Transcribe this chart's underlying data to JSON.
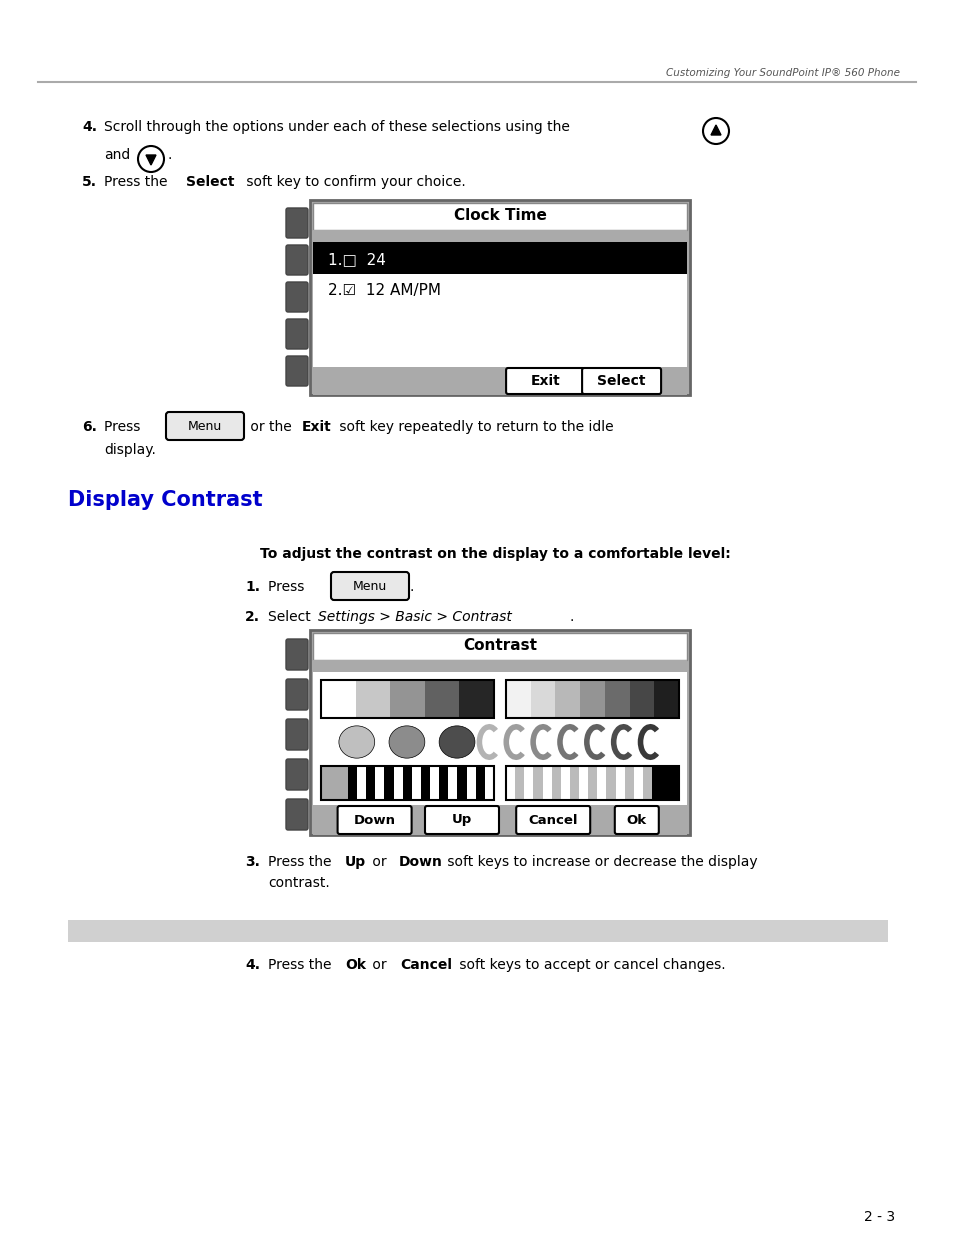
{
  "bg_color": "#ffffff",
  "header_text": "Customizing Your SoundPoint IP® 560 Phone",
  "section_title": "Display Contrast",
  "section_title_color": "#0000cc",
  "footer_text": "2 - 3"
}
